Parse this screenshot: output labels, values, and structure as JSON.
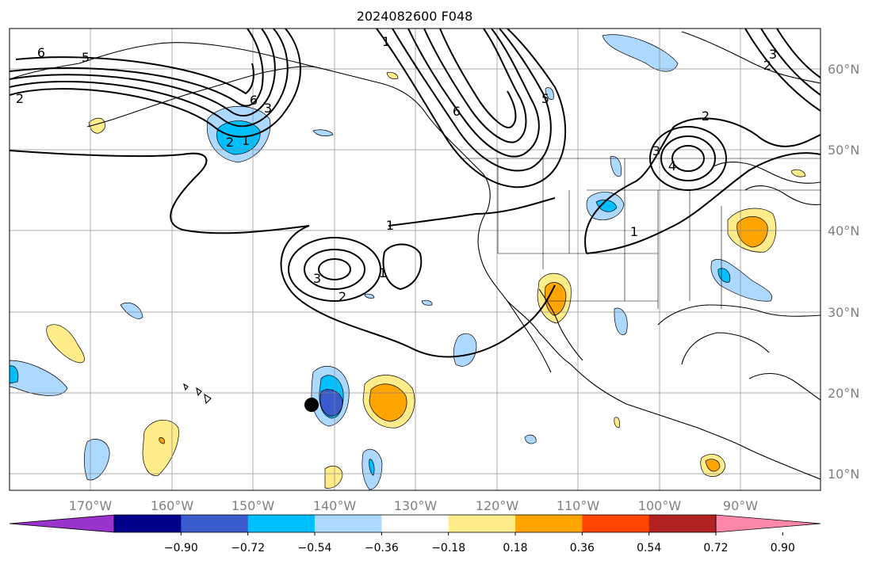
{
  "title": "2024082600 F048",
  "longitude_labels": [
    "170°W",
    "160°W",
    "150°W",
    "140°W",
    "130°W",
    "120°W",
    "110°W",
    "100°W",
    "90°W"
  ],
  "latitude_labels": [
    "60°N",
    "50°N",
    "40°N",
    "30°N",
    "20°N",
    "10°N"
  ],
  "contour_labels": [
    "1",
    "2",
    "3",
    "4",
    "5",
    "6"
  ],
  "colorbar": {
    "ticks": [
      "−0.90",
      "−0.72",
      "−0.54",
      "−0.36",
      "−0.18",
      "0.18",
      "0.36",
      "0.54",
      "0.72",
      "0.90"
    ],
    "colors": [
      "#9933cc",
      "#00008b",
      "#3a5bcc",
      "#00bfff",
      "#add8ff",
      "#ffffff",
      "#ffec8b",
      "#ffa500",
      "#ff4500",
      "#b22222",
      "#ff88aa"
    ],
    "extend": "both"
  },
  "map_extent": {
    "lon_min": -180,
    "lon_max": -80,
    "lat_min": 8,
    "lat_max": 65
  },
  "marker": {
    "lon": -143,
    "lat": 18.5,
    "color": "#000000"
  }
}
